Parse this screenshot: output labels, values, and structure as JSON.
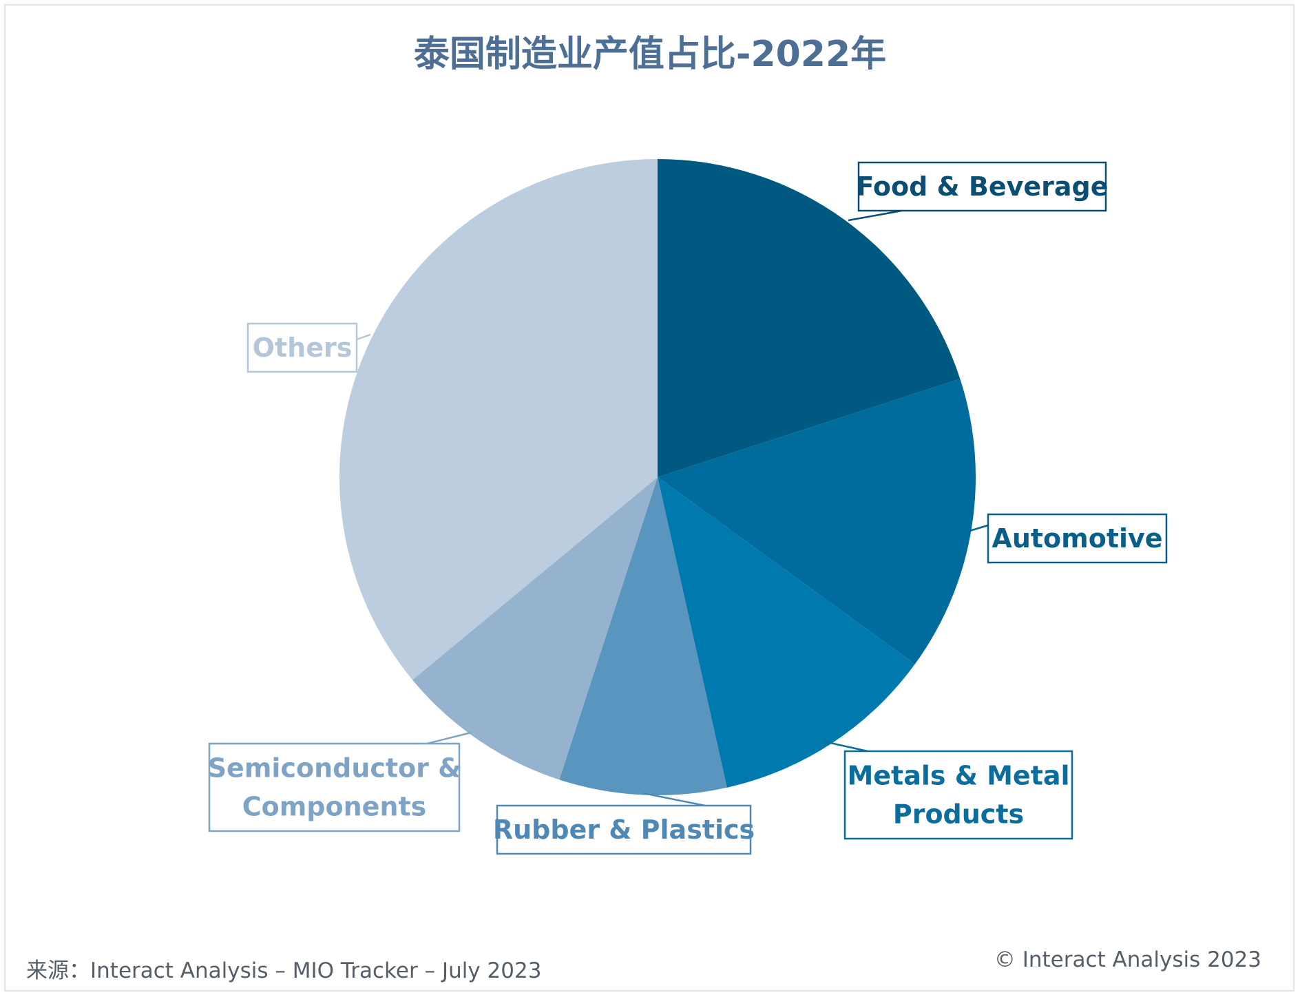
{
  "chart_data": {
    "type": "pie",
    "title": "泰国制造业产值占比-2022年",
    "slices": [
      {
        "label": "Food & Beverage",
        "value": 20.0,
        "color": "#005981",
        "label_color": "#0a4f73"
      },
      {
        "label": "Automotive",
        "value": 15.0,
        "color": "#006c9d",
        "label_color": "#0a5f88"
      },
      {
        "label": "Metals & Metal Products",
        "value": 11.5,
        "color": "#0079ae",
        "label_color": "#0a6d9c"
      },
      {
        "label": "Rubber & Plastics",
        "value": 8.5,
        "color": "#5a95c0",
        "label_color": "#4f88b5"
      },
      {
        "label": "Semiconductor & Components",
        "value": 9.0,
        "color": "#95b3ce",
        "label_color": "#7fa3c4"
      },
      {
        "label": "Others",
        "value": 36.0,
        "color": "#bccddf",
        "label_color": "#b3c6da"
      }
    ]
  },
  "footer": {
    "source": "来源：Interact Analysis – MIO Tracker – July 2023",
    "copyright": "© Interact Analysis 2023"
  }
}
